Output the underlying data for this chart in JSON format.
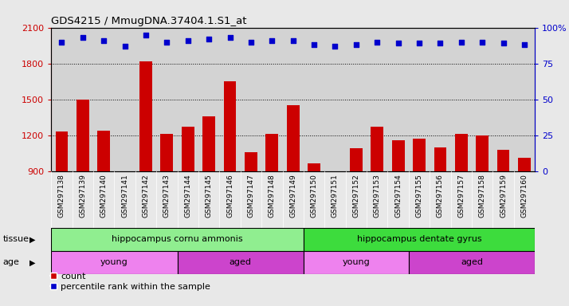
{
  "title": "GDS4215 / MmugDNA.37404.1.S1_at",
  "samples": [
    "GSM297138",
    "GSM297139",
    "GSM297140",
    "GSM297141",
    "GSM297142",
    "GSM297143",
    "GSM297144",
    "GSM297145",
    "GSM297146",
    "GSM297147",
    "GSM297148",
    "GSM297149",
    "GSM297150",
    "GSM297151",
    "GSM297152",
    "GSM297153",
    "GSM297154",
    "GSM297155",
    "GSM297156",
    "GSM297157",
    "GSM297158",
    "GSM297159",
    "GSM297160"
  ],
  "counts": [
    1230,
    1500,
    1240,
    870,
    1820,
    1210,
    1270,
    1360,
    1650,
    1060,
    1210,
    1450,
    970,
    840,
    1090,
    1270,
    1160,
    1170,
    1100,
    1210,
    1200,
    1080,
    1010
  ],
  "percentiles": [
    90,
    93,
    91,
    87,
    95,
    90,
    91,
    92,
    93,
    90,
    91,
    91,
    88,
    87,
    88,
    90,
    89,
    89,
    89,
    90,
    90,
    89,
    88
  ],
  "ylim_left": [
    900,
    2100
  ],
  "ylim_right": [
    0,
    100
  ],
  "yticks_left": [
    900,
    1200,
    1500,
    1800,
    2100
  ],
  "yticks_right": [
    0,
    25,
    50,
    75,
    100
  ],
  "bar_color": "#cc0000",
  "dot_color": "#0000cc",
  "tissue_groups": [
    {
      "label": "hippocampus cornu ammonis",
      "start": 0,
      "end": 12,
      "color": "#90ee90"
    },
    {
      "label": "hippocampus dentate gyrus",
      "start": 12,
      "end": 23,
      "color": "#3ddc3d"
    }
  ],
  "age_groups": [
    {
      "label": "young",
      "start": 0,
      "end": 6,
      "color": "#ee82ee"
    },
    {
      "label": "aged",
      "start": 6,
      "end": 12,
      "color": "#cc44cc"
    },
    {
      "label": "young",
      "start": 12,
      "end": 17,
      "color": "#ee82ee"
    },
    {
      "label": "aged",
      "start": 17,
      "end": 23,
      "color": "#cc44cc"
    }
  ],
  "tissue_label": "tissue",
  "age_label": "age",
  "legend_count_label": "count",
  "legend_pct_label": "percentile rank within the sample",
  "background_color": "#e8e8e8",
  "plot_bg_color": "#d3d3d3",
  "xtick_bg_color": "#c8c8c8",
  "grid_color": "#000000",
  "title_color": "#000000",
  "left_axis_color": "#cc0000",
  "right_axis_color": "#0000cc"
}
